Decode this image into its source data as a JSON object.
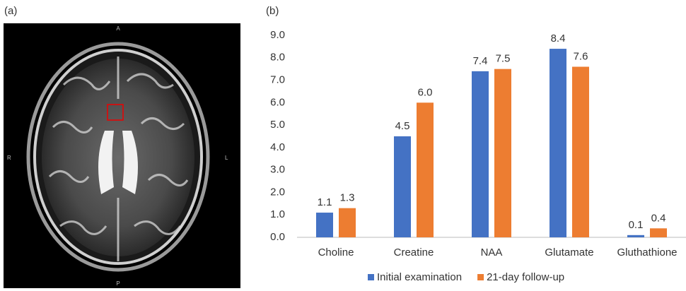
{
  "panel_a": {
    "label": "(a)",
    "orientation": {
      "top": "A",
      "left": "R",
      "right": "L",
      "bottom": "P"
    }
  },
  "chart_data": {
    "type": "bar",
    "panel_label": "(b)",
    "categories": [
      "Choline",
      "Creatine",
      "NAA",
      "Glutamate",
      "Gluthathione"
    ],
    "series": [
      {
        "name": "Initial examination",
        "color": "#4472c4",
        "values": [
          1.1,
          4.5,
          7.4,
          8.4,
          0.1
        ],
        "value_labels": [
          "1.1",
          "4.5",
          "7.4",
          "8.4",
          "0.1"
        ]
      },
      {
        "name": "21-day follow-up",
        "color": "#ed7d31",
        "values": [
          1.3,
          6.0,
          7.5,
          7.6,
          0.4
        ],
        "value_labels": [
          "1.3",
          "6.0",
          "7.5",
          "7.6",
          "0.4"
        ]
      }
    ],
    "ylim": [
      0,
      9
    ],
    "yticks": [
      {
        "value": 0,
        "label": "0.0"
      },
      {
        "value": 1,
        "label": "1.0"
      },
      {
        "value": 2,
        "label": "2.0"
      },
      {
        "value": 3,
        "label": "3.0"
      },
      {
        "value": 4,
        "label": "4.0"
      },
      {
        "value": 5,
        "label": "5.0"
      },
      {
        "value": 6,
        "label": "6.0"
      },
      {
        "value": 7,
        "label": "7.0"
      },
      {
        "value": 8,
        "label": "8.0"
      },
      {
        "value": 9,
        "label": "9.0"
      }
    ],
    "grid": false,
    "legend": "bottom"
  }
}
